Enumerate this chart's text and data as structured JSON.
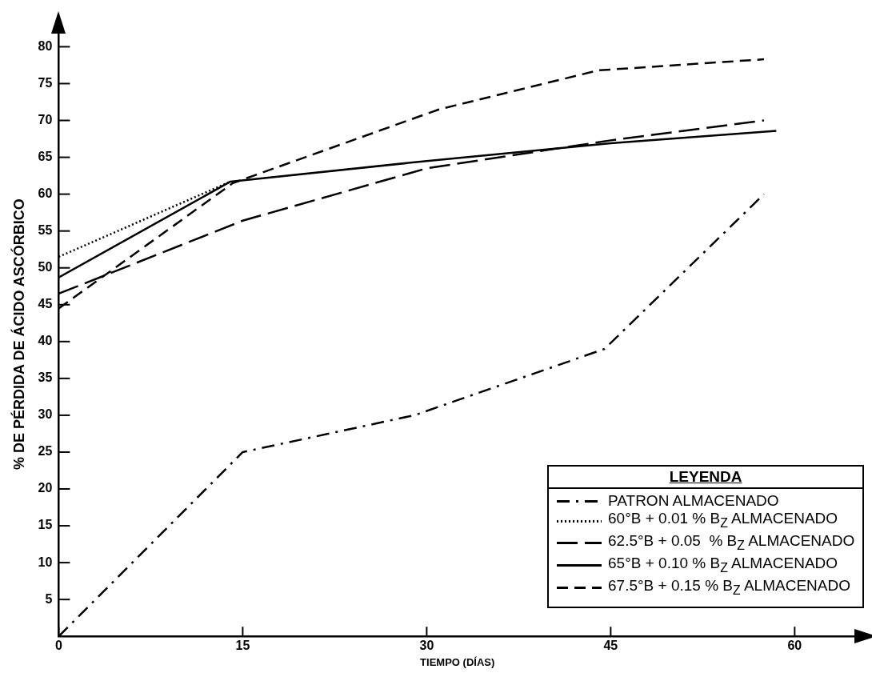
{
  "chart_data": {
    "type": "line",
    "xlabel": "TIEMPO (DÍAS)",
    "ylabel": "% DE PÉRDIDA DE ÁCIDO ASCÓRBICO",
    "legend_title": "LEYENDA",
    "xlim": [
      0,
      65
    ],
    "xticks": [
      0,
      15,
      30,
      45,
      60
    ],
    "ylim": [
      0,
      82
    ],
    "yticks": [
      5,
      10,
      15,
      20,
      25,
      30,
      35,
      40,
      45,
      50,
      55,
      60,
      65,
      70,
      75,
      80
    ],
    "grid": false,
    "legend": "bottom right",
    "marker": "none",
    "series": [
      {
        "name": "PATRON ALMACENADO",
        "color": "#000000",
        "line_style": "dashdot",
        "x": [
          0,
          15,
          29,
          44.5,
          57.5
        ],
        "values": [
          0,
          25,
          30,
          39,
          60
        ]
      },
      {
        "name": "60°B + 0.01 % B$_{Z}$ ALMACENADO",
        "color": "#000000",
        "line_style": "dotted",
        "x": [
          0,
          14
        ],
        "values": [
          51.5,
          61.7
        ]
      },
      {
        "name": "62.5°B + 0.05  % B$_{Z}$ ALMACENADO",
        "color": "#000000",
        "line_style": "longdash",
        "x": [
          0,
          15,
          30,
          45,
          57.5
        ],
        "values": [
          46.5,
          56.4,
          63.5,
          67.3,
          70
        ]
      },
      {
        "name": "65°B + 0.10 % B$_{Z}$ ALMACENADO",
        "color": "#000000",
        "line_style": "solid",
        "x": [
          0,
          14,
          30,
          45,
          58.5
        ],
        "values": [
          48.7,
          61.7,
          64.5,
          66.9,
          68.6
        ]
      },
      {
        "name": "67.5°B + 0.15 % B$_{Z}$ ALMACENADO",
        "color": "#000000",
        "line_style": "dashed",
        "x": [
          0,
          14.2,
          31,
          44,
          57.5
        ],
        "values": [
          44.5,
          61.5,
          71.5,
          76.8,
          78.3
        ]
      }
    ]
  }
}
